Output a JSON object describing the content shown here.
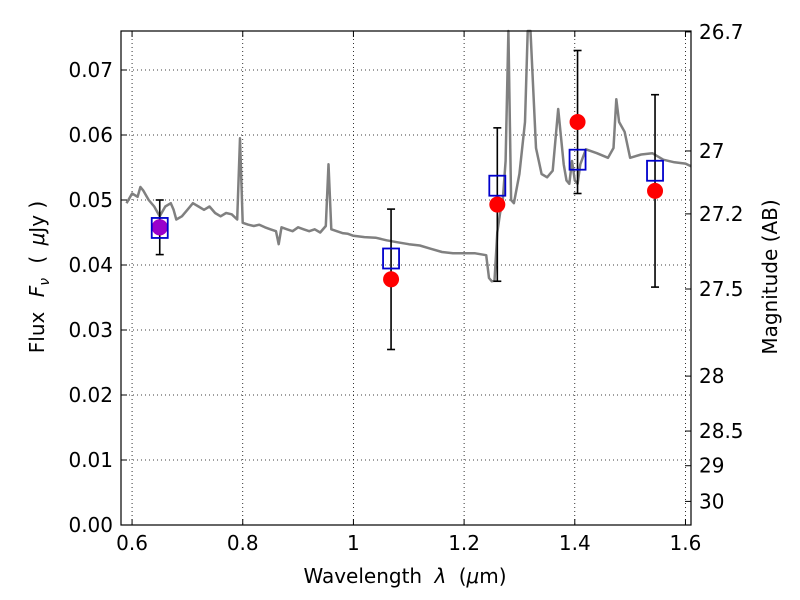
{
  "chart_data": {
    "type": "scatter",
    "xlabel_prefix": "Wavelength",
    "xlabel_symbol": "λ",
    "xlabel_unit_open": "(",
    "xlabel_unit_mu": "μ",
    "xlabel_unit_rest": "m)",
    "ylabel_prefix": "Flux",
    "ylabel_symbol": "F",
    "ylabel_sub": "ν",
    "ylabel_unit_open": "(",
    "ylabel_unit_mu": "μ",
    "ylabel_unit_rest": "Jy )",
    "y2label": "Magnitude (AB)",
    "xlim": [
      0.58,
      1.61
    ],
    "ylim": [
      0.0,
      0.076
    ],
    "xticks": [
      0.6,
      0.8,
      1.0,
      1.2,
      1.4,
      1.6
    ],
    "xtick_labels": [
      "0.6",
      "0.8",
      "1",
      "1.2",
      "1.4",
      "1.6"
    ],
    "yticks": [
      0.0,
      0.01,
      0.02,
      0.03,
      0.04,
      0.05,
      0.06,
      0.07
    ],
    "ytick_labels": [
      "0.00",
      "0.01",
      "0.02",
      "0.03",
      "0.04",
      "0.05",
      "0.06",
      "0.07"
    ],
    "y2ticks": [
      {
        "label": "26.7",
        "mag": 26.7
      },
      {
        "label": "27",
        "mag": 27.0
      },
      {
        "label": "27.2",
        "mag": 27.2
      },
      {
        "label": "27.5",
        "mag": 27.5
      },
      {
        "label": "28",
        "mag": 28.0
      },
      {
        "label": "28.5",
        "mag": 28.5
      },
      {
        "label": "29",
        "mag": 29.0
      },
      {
        "label": "30",
        "mag": 30.0
      }
    ],
    "grid": true,
    "colors": {
      "spectrum": "#808080",
      "observed": "#ff0000",
      "model": "#0000cc",
      "highlight": "#9900cc",
      "errorbar": "#000000"
    },
    "spectrum": {
      "x": [
        0.59,
        0.6,
        0.61,
        0.615,
        0.62,
        0.63,
        0.64,
        0.65,
        0.66,
        0.67,
        0.675,
        0.68,
        0.69,
        0.7,
        0.71,
        0.72,
        0.73,
        0.74,
        0.75,
        0.76,
        0.77,
        0.78,
        0.79,
        0.795,
        0.8,
        0.81,
        0.82,
        0.83,
        0.84,
        0.85,
        0.86,
        0.865,
        0.87,
        0.88,
        0.89,
        0.9,
        0.91,
        0.92,
        0.93,
        0.94,
        0.95,
        0.955,
        0.96,
        0.97,
        0.98,
        0.99,
        1.0,
        1.02,
        1.04,
        1.06,
        1.08,
        1.1,
        1.12,
        1.14,
        1.16,
        1.18,
        1.2,
        1.22,
        1.24,
        1.245,
        1.25,
        1.255,
        1.26,
        1.265,
        1.27,
        1.275,
        1.28,
        1.285,
        1.29,
        1.3,
        1.31,
        1.315,
        1.32,
        1.33,
        1.34,
        1.35,
        1.36,
        1.37,
        1.38,
        1.385,
        1.39,
        1.395,
        1.4,
        1.405,
        1.41,
        1.42,
        1.44,
        1.46,
        1.47,
        1.475,
        1.48,
        1.49,
        1.5,
        1.52,
        1.54,
        1.56,
        1.58,
        1.6,
        1.61
      ],
      "y": [
        0.0495,
        0.051,
        0.0505,
        0.052,
        0.0515,
        0.05,
        0.049,
        0.0475,
        0.049,
        0.0495,
        0.0485,
        0.047,
        0.0475,
        0.0485,
        0.0495,
        0.049,
        0.0485,
        0.049,
        0.048,
        0.0475,
        0.048,
        0.0478,
        0.047,
        0.0595,
        0.0465,
        0.0462,
        0.046,
        0.0462,
        0.0458,
        0.0455,
        0.0452,
        0.0432,
        0.0458,
        0.0455,
        0.0452,
        0.0458,
        0.0455,
        0.0452,
        0.0455,
        0.045,
        0.046,
        0.0555,
        0.0455,
        0.0452,
        0.0449,
        0.0448,
        0.0445,
        0.0443,
        0.0442,
        0.0438,
        0.0435,
        0.0432,
        0.043,
        0.0425,
        0.042,
        0.0418,
        0.0418,
        0.0418,
        0.0415,
        0.038,
        0.0375,
        0.0376,
        0.045,
        0.048,
        0.05,
        0.056,
        0.0768,
        0.05,
        0.0495,
        0.054,
        0.062,
        0.0768,
        0.0768,
        0.058,
        0.054,
        0.0535,
        0.0545,
        0.064,
        0.0555,
        0.053,
        0.0525,
        0.056,
        0.053,
        0.0525,
        0.0555,
        0.0578,
        0.0572,
        0.0565,
        0.058,
        0.0655,
        0.062,
        0.0605,
        0.0565,
        0.057,
        0.0572,
        0.0562,
        0.0558,
        0.0556,
        0.0552
      ]
    },
    "observed": [
      {
        "x": 0.65,
        "y": 0.0458,
        "yerr": 0.0042
      },
      {
        "x": 1.068,
        "y": 0.0378,
        "yerr": 0.0108
      },
      {
        "x": 1.26,
        "y": 0.0493,
        "yerr": 0.0118
      },
      {
        "x": 1.405,
        "y": 0.062,
        "yerr": 0.011
      },
      {
        "x": 1.545,
        "y": 0.0514,
        "yerr": 0.0148
      }
    ],
    "highlight_point": {
      "x": 0.65,
      "y": 0.0458
    },
    "model_points": [
      {
        "x": 0.65,
        "y": 0.0457
      },
      {
        "x": 1.068,
        "y": 0.041
      },
      {
        "x": 1.26,
        "y": 0.0522
      },
      {
        "x": 1.405,
        "y": 0.0562
      },
      {
        "x": 1.545,
        "y": 0.0545
      }
    ]
  }
}
